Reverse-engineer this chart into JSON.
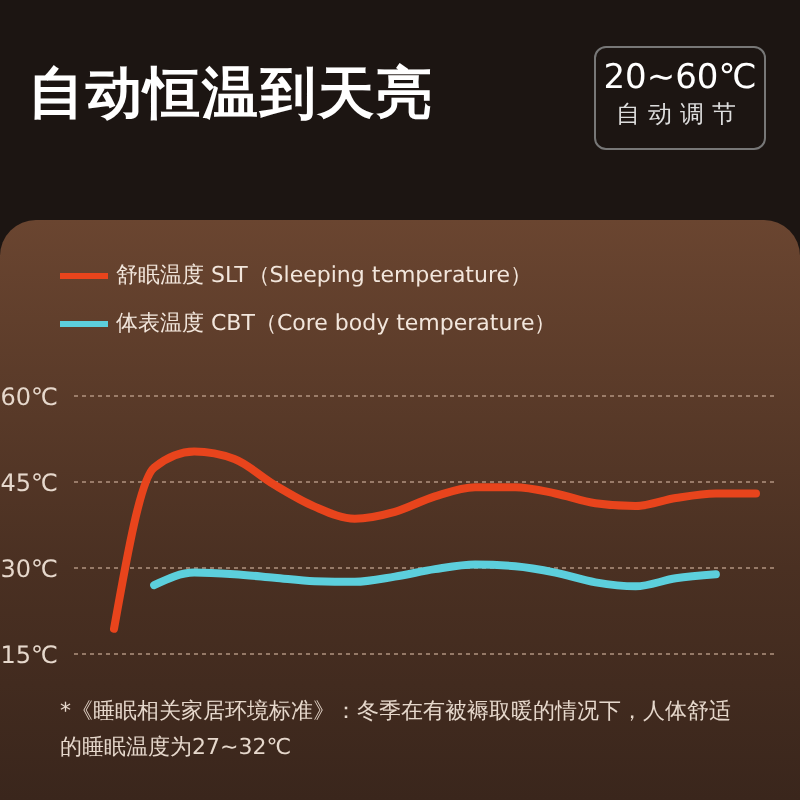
{
  "chart_data": {
    "type": "line",
    "title": "自动恒温到天亮",
    "annotations": [
      "20~60℃",
      "自动调节",
      "*《睡眠相关家居环境标准》：冬季在有被褥取暖的情况下，人体舒适的睡眠温度为27~32℃"
    ],
    "categories": [
      null,
      null,
      null,
      null,
      null,
      null,
      null,
      null,
      null,
      null,
      null,
      null,
      null,
      null,
      null,
      null,
      null
    ],
    "series": [
      {
        "name": "舒眠温度 SLT（Sleeping temperature）",
        "color": "#e8441c",
        "values": [
          19.4,
          47.5,
          50.3,
          49,
          44.5,
          40.7,
          38.6,
          39.8,
          42.5,
          44.1,
          44.1,
          43,
          41.3,
          40.8,
          42.2,
          43,
          43
        ]
      },
      {
        "name": "体表温度 CBT（Core body temperature）",
        "color": "#5ccfdc",
        "values": [
          null,
          27,
          29.2,
          28.9,
          28.3,
          27.7,
          27.6,
          28.5,
          29.8,
          30.6,
          30.3,
          29.2,
          27.5,
          26.8,
          28.2,
          28.9,
          null
        ]
      }
    ],
    "ylim": [
      15,
      60
    ],
    "yticks": [
      {
        "value": 15,
        "label": "15℃"
      },
      {
        "value": 30,
        "label": "30℃"
      },
      {
        "value": 45,
        "label": "45℃"
      },
      {
        "value": 60,
        "label": "60℃"
      }
    ],
    "grid": "y",
    "legend": "top left",
    "tick_labels": "y",
    "marker": "none",
    "line_style": "solid"
  }
}
